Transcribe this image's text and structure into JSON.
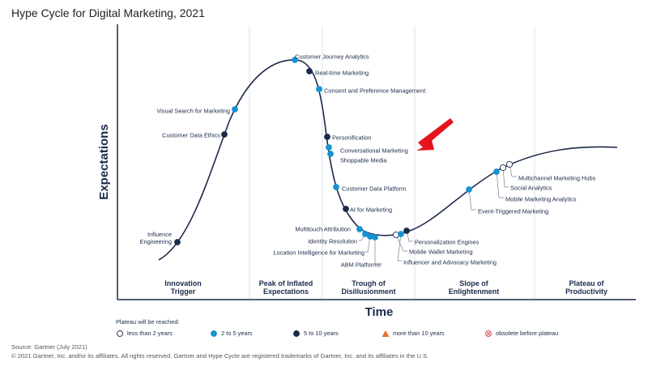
{
  "chart_data": {
    "type": "scatter",
    "title": "Hype Cycle for Digital Marketing, 2021",
    "xlabel": "Time",
    "ylabel": "Expectations",
    "phases": [
      "Innovation Trigger",
      "Peak of Inflated Expectations",
      "Trough of Disillusionment",
      "Slope of Enlightenment",
      "Plateau of Productivity"
    ],
    "legend_title": "Plateau will be reached:",
    "legend": [
      {
        "key": "lt2",
        "label": "less than 2 years",
        "color": "#ffffff",
        "shape": "circle"
      },
      {
        "key": "2to5",
        "label": "2 to 5 years",
        "color": "#1593d1",
        "shape": "circle"
      },
      {
        "key": "5to10",
        "label": "5 to 10 years",
        "color": "#1b2a4a",
        "shape": "circle"
      },
      {
        "key": "gt10",
        "label": "more than 10 years",
        "color": "#e8702a",
        "shape": "triangle"
      },
      {
        "key": "obs",
        "label": "obsolete before plateau",
        "color": "#d9534f",
        "shape": "crossed-circle"
      }
    ],
    "points": [
      {
        "name": "Influence Engineering",
        "category": "5to10"
      },
      {
        "name": "Customer Data Ethics",
        "category": "5to10"
      },
      {
        "name": "Visual Search for Marketing",
        "category": "2to5"
      },
      {
        "name": "Customer Journey Analytics",
        "category": "2to5"
      },
      {
        "name": "Real-time Marketing",
        "category": "5to10"
      },
      {
        "name": "Consent and Preference Management",
        "category": "2to5"
      },
      {
        "name": "Personification",
        "category": "5to10"
      },
      {
        "name": "Conversational Marketing",
        "category": "2to5"
      },
      {
        "name": "Shoppable Media",
        "category": "2to5"
      },
      {
        "name": "Customer Data Platform",
        "category": "2to5"
      },
      {
        "name": "AI for Marketing",
        "category": "5to10"
      },
      {
        "name": "Multitouch Attribution",
        "category": "2to5"
      },
      {
        "name": "Identity Resolution",
        "category": "2to5"
      },
      {
        "name": "Location Intelligence for Marketing",
        "category": "2to5"
      },
      {
        "name": "ABM Platforms",
        "category": "2to5"
      },
      {
        "name": "Mobile Wallet Marketing",
        "category": "lt2"
      },
      {
        "name": "Influencer and Advocacy Marketing",
        "category": "2to5"
      },
      {
        "name": "Personalization Engines",
        "category": "5to10"
      },
      {
        "name": "Event-Triggered Marketing",
        "category": "2to5"
      },
      {
        "name": "Mobile Marketing Analytics",
        "category": "2to5"
      },
      {
        "name": "Social Analytics",
        "category": "lt2"
      },
      {
        "name": "Multichannel Marketing Hubs",
        "category": "lt2"
      }
    ]
  },
  "footer": {
    "source": "Source: Gartner (July 2021)",
    "copyright": "© 2021 Gartner, Inc. and/or its affiliates. All rights reserved. Gartner and Hype Cycle are registered trademarks of Gartner, Inc. and its affiliates in the U.S."
  }
}
